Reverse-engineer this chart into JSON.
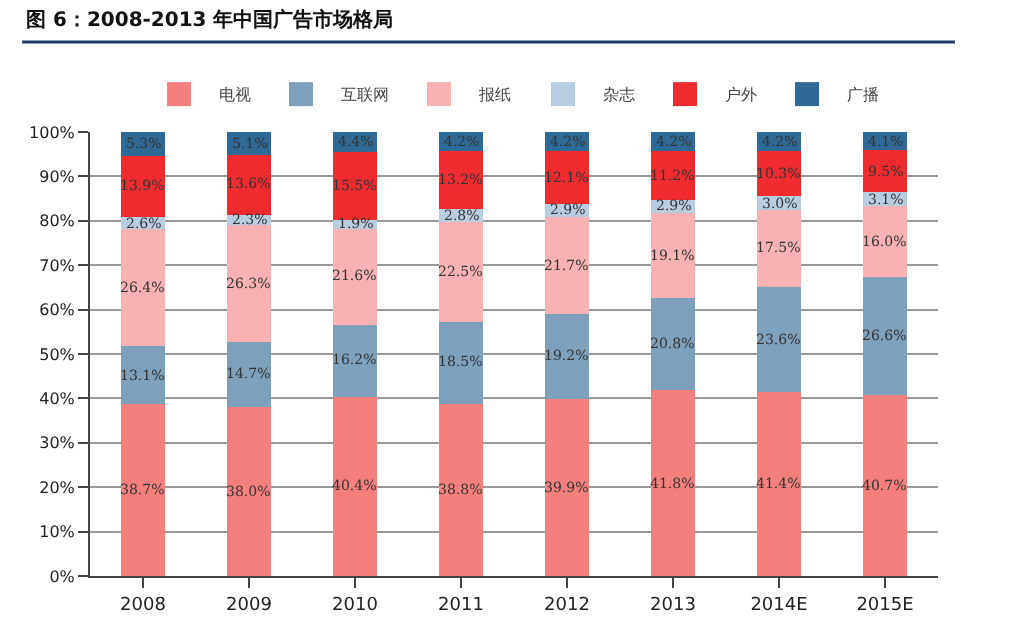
{
  "chart_data": {
    "type": "bar",
    "stacked": true,
    "title": "图 6：2008-2013 年中国广告市场格局",
    "categories": [
      "2008",
      "2009",
      "2010",
      "2011",
      "2012",
      "2013",
      "2014E",
      "2015E"
    ],
    "series": [
      {
        "name": "电视",
        "color": "#f47f7f",
        "values": [
          38.7,
          38.0,
          40.4,
          38.8,
          39.9,
          41.8,
          41.4,
          40.7
        ],
        "value_labels": [
          "38.7%",
          "38.0%",
          "40.4%",
          "38.8%",
          "39.9%",
          "41.8%",
          "41.4%",
          "40.7%"
        ]
      },
      {
        "name": "互联网",
        "color": "#7fa0bb",
        "values": [
          13.1,
          14.7,
          16.2,
          18.5,
          19.2,
          20.8,
          23.6,
          26.6
        ],
        "value_labels": [
          "13.1%",
          "14.7%",
          "16.2%",
          "18.5%",
          "19.2%",
          "20.8%",
          "23.6%",
          "26.6%"
        ]
      },
      {
        "name": "报纸",
        "color": "#f9b1b3",
        "values": [
          26.4,
          26.3,
          21.6,
          22.5,
          21.7,
          19.1,
          17.5,
          16.0
        ],
        "value_labels": [
          "26.4%",
          "26.3%",
          "21.6%",
          "22.5%",
          "21.7%",
          "19.1%",
          "17.5%",
          "16.0%"
        ]
      },
      {
        "name": "杂志",
        "color": "#b9cde0",
        "values": [
          2.6,
          2.3,
          1.9,
          2.8,
          2.9,
          2.9,
          3.0,
          3.1
        ],
        "value_labels": [
          "2.6%",
          "2.3%",
          "1.9%",
          "2.8%",
          "2.9%",
          "2.9%",
          "3.0%",
          "3.1%"
        ]
      },
      {
        "name": "户外",
        "color": "#ef2b2e",
        "values": [
          13.9,
          13.6,
          15.5,
          13.2,
          12.1,
          11.2,
          10.3,
          9.5
        ],
        "value_labels": [
          "13.9%",
          "13.6%",
          "15.5%",
          "13.2%",
          "12.1%",
          "11.2%",
          "10.3%",
          "9.5%"
        ]
      },
      {
        "name": "广播",
        "color": "#2f6a97",
        "values": [
          5.3,
          5.1,
          4.4,
          4.2,
          4.2,
          4.2,
          4.2,
          4.1
        ],
        "value_labels": [
          "5.3%",
          "5.1%",
          "4.4%",
          "4.2%",
          "4.2%",
          "4.2%",
          "4.2%",
          "4.1%"
        ]
      }
    ],
    "ylim": [
      0,
      100
    ],
    "yticks": [
      {
        "value": 0,
        "label": "0%"
      },
      {
        "value": 10,
        "label": "10%"
      },
      {
        "value": 20,
        "label": "20%"
      },
      {
        "value": 30,
        "label": "30%"
      },
      {
        "value": 40,
        "label": "40%"
      },
      {
        "value": 50,
        "label": "50%"
      },
      {
        "value": 60,
        "label": "60%"
      },
      {
        "value": 70,
        "label": "70%"
      },
      {
        "value": 80,
        "label": "80%"
      },
      {
        "value": 90,
        "label": "90%"
      },
      {
        "value": 100,
        "label": "100%"
      }
    ],
    "grid": "y",
    "legend": "top"
  }
}
